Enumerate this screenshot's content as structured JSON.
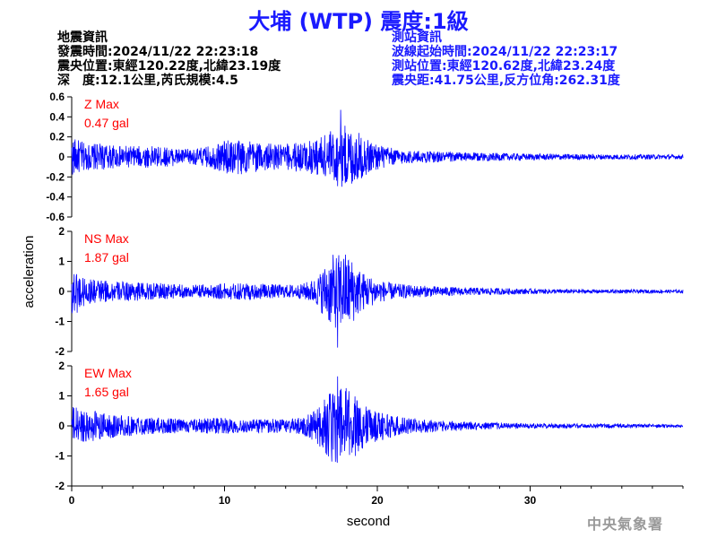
{
  "title": "大埔 (WTP) 震度:1級",
  "event_info": {
    "heading": "地震資訊",
    "time": "發震時間:2024/11/22 22:23:18",
    "location": "震央位置:東經120.22度,北緯23.19度",
    "depth_magnitude": "深　度:12.1公里,芮氏規模:4.5"
  },
  "station_info": {
    "heading": "測站資訊",
    "wave_start": "波線起始時間:2024/11/22 22:23:17",
    "location": "測站位置:東經120.62度,北緯23.24度",
    "distance_azimuth": "震央距:41.75公里,反方位角:262.31度"
  },
  "agency": "中央氣象署",
  "colors": {
    "trace": "#0000ff",
    "max_label": "#ff0000",
    "axis": "#000000",
    "title": "#1a1aff"
  },
  "chart_data": [
    {
      "type": "line",
      "component": "Z",
      "max_label": "Z Max",
      "max_value": "0.47 gal",
      "ylim": [
        -0.6,
        0.6
      ],
      "yticks": [
        -0.6,
        -0.4,
        -0.2,
        0,
        0.2,
        0.4,
        0.6
      ],
      "ytick_labels": [
        "-0.6",
        "-0.4",
        "-0.2",
        "0",
        "0.2",
        "0.4",
        "0.6"
      ],
      "peak": 0.47,
      "envelope": [
        [
          0,
          0.18
        ],
        [
          1,
          0.12
        ],
        [
          2,
          0.12
        ],
        [
          3,
          0.1
        ],
        [
          4,
          0.1
        ],
        [
          5,
          0.1
        ],
        [
          6,
          0.09
        ],
        [
          7,
          0.08
        ],
        [
          8,
          0.07
        ],
        [
          9,
          0.1
        ],
        [
          10,
          0.15
        ],
        [
          11,
          0.17
        ],
        [
          12,
          0.14
        ],
        [
          13,
          0.12
        ],
        [
          14,
          0.12
        ],
        [
          15,
          0.14
        ],
        [
          16,
          0.17
        ],
        [
          17,
          0.25
        ],
        [
          18,
          0.3
        ],
        [
          19,
          0.2
        ],
        [
          20,
          0.12
        ],
        [
          21,
          0.08
        ],
        [
          22,
          0.06
        ],
        [
          24,
          0.05
        ],
        [
          26,
          0.04
        ],
        [
          28,
          0.035
        ],
        [
          30,
          0.03
        ],
        [
          34,
          0.025
        ],
        [
          40,
          0.02
        ]
      ]
    },
    {
      "type": "line",
      "component": "NS",
      "max_label": "NS Max",
      "max_value": "1.87 gal",
      "ylim": [
        -2,
        2
      ],
      "yticks": [
        -2,
        -1,
        0,
        1,
        2
      ],
      "ytick_labels": [
        "-2",
        "-1",
        "0",
        "1",
        "2"
      ],
      "peak": 1.87,
      "envelope": [
        [
          0,
          0.8
        ],
        [
          1,
          0.4
        ],
        [
          2,
          0.35
        ],
        [
          3,
          0.3
        ],
        [
          4,
          0.3
        ],
        [
          5,
          0.25
        ],
        [
          6,
          0.25
        ],
        [
          7,
          0.22
        ],
        [
          8,
          0.2
        ],
        [
          9,
          0.2
        ],
        [
          10,
          0.25
        ],
        [
          11,
          0.25
        ],
        [
          12,
          0.25
        ],
        [
          13,
          0.22
        ],
        [
          14,
          0.2
        ],
        [
          15,
          0.22
        ],
        [
          16,
          0.4
        ],
        [
          17,
          1.1
        ],
        [
          18,
          1.2
        ],
        [
          19,
          0.6
        ],
        [
          20,
          0.35
        ],
        [
          21,
          0.25
        ],
        [
          22,
          0.2
        ],
        [
          24,
          0.15
        ],
        [
          26,
          0.12
        ],
        [
          28,
          0.1
        ],
        [
          30,
          0.08
        ],
        [
          34,
          0.06
        ],
        [
          40,
          0.05
        ]
      ]
    },
    {
      "type": "line",
      "component": "EW",
      "max_label": "EW Max",
      "max_value": "1.65 gal",
      "ylim": [
        -2,
        2
      ],
      "yticks": [
        -2,
        -1,
        0,
        1,
        2
      ],
      "ytick_labels": [
        "-2",
        "-1",
        "0",
        "1",
        "2"
      ],
      "peak": 1.65,
      "envelope": [
        [
          0,
          0.6
        ],
        [
          1,
          0.5
        ],
        [
          2,
          0.4
        ],
        [
          3,
          0.35
        ],
        [
          4,
          0.3
        ],
        [
          5,
          0.25
        ],
        [
          6,
          0.25
        ],
        [
          7,
          0.22
        ],
        [
          8,
          0.2
        ],
        [
          9,
          0.25
        ],
        [
          10,
          0.25
        ],
        [
          11,
          0.2
        ],
        [
          12,
          0.2
        ],
        [
          13,
          0.22
        ],
        [
          14,
          0.2
        ],
        [
          15,
          0.25
        ],
        [
          16,
          0.5
        ],
        [
          17,
          1.1
        ],
        [
          18,
          1.2
        ],
        [
          19,
          0.7
        ],
        [
          20,
          0.45
        ],
        [
          21,
          0.35
        ],
        [
          22,
          0.25
        ],
        [
          24,
          0.18
        ],
        [
          26,
          0.12
        ],
        [
          28,
          0.1
        ],
        [
          30,
          0.08
        ],
        [
          34,
          0.06
        ],
        [
          40,
          0.05
        ]
      ]
    }
  ],
  "x_axis": {
    "label": "second",
    "xlim": [
      0,
      40
    ],
    "ticks": [
      0,
      10,
      20,
      30
    ],
    "tick_labels": [
      "0",
      "10",
      "20",
      "30"
    ]
  },
  "y_axis_label": "acceleration"
}
